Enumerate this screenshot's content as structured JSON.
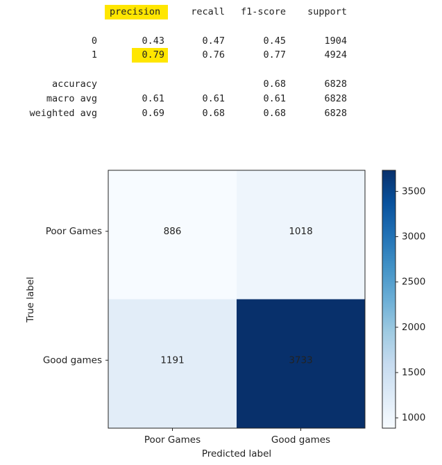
{
  "report": {
    "columns": [
      "precision",
      "recall",
      "f1-score",
      "support"
    ],
    "rows": [
      {
        "label": "0",
        "precision": "0.43",
        "recall": "0.47",
        "f1": "0.45",
        "support": "1904"
      },
      {
        "label": "1",
        "precision": "0.79",
        "recall": "0.76",
        "f1": "0.77",
        "support": "4924"
      }
    ],
    "summary": [
      {
        "label": "accuracy",
        "precision": "",
        "recall": "",
        "f1": "0.68",
        "support": "6828"
      },
      {
        "label": "macro avg",
        "precision": "0.61",
        "recall": "0.61",
        "f1": "0.61",
        "support": "6828"
      },
      {
        "label": "weighted avg",
        "precision": "0.69",
        "recall": "0.68",
        "f1": "0.68",
        "support": "6828"
      }
    ],
    "highlight_color": "#ffe600"
  },
  "chart_data": {
    "type": "heatmap",
    "title": "",
    "xlabel": "Predicted label",
    "ylabel": "True label",
    "x_categories": [
      "Poor Games",
      "Good games"
    ],
    "y_categories": [
      "Poor Games",
      "Good games"
    ],
    "values": [
      [
        886,
        1018
      ],
      [
        1191,
        3733
      ]
    ],
    "colormap": "Blues",
    "colorbar": {
      "min": 886,
      "max": 3733,
      "ticks": [
        1000,
        1500,
        2000,
        2500,
        3000,
        3500
      ]
    }
  }
}
